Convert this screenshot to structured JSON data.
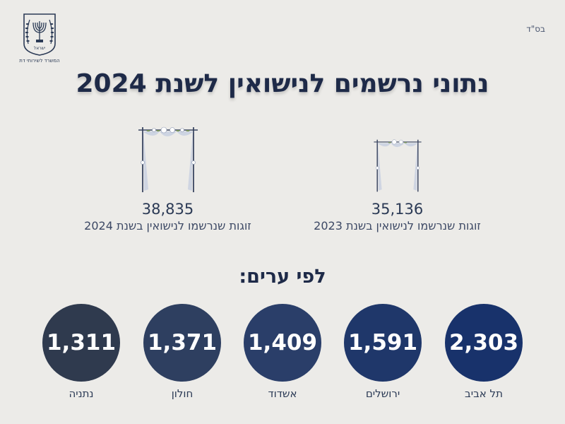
{
  "header": {
    "bsd": "בס\"ד",
    "ministry": "המשרד לשירותי דת",
    "emblem_text": "ישראל"
  },
  "title": "נתוני נרשמים לנישואין לשנת 2024",
  "stats": [
    {
      "number": "38,835",
      "caption": "זוגות שנרשמו לנישואין בשנת 2024"
    },
    {
      "number": "35,136",
      "caption": "זוגות שנרשמו לנישואין בשנת 2023"
    }
  ],
  "by_city_title": "לפי ערים:",
  "cities": [
    {
      "name": "תל אביב",
      "count": "2,303",
      "color": "#18326b"
    },
    {
      "name": "ירושלים",
      "count": "1,591",
      "color": "#1f376a"
    },
    {
      "name": "אשדוד",
      "count": "1,409",
      "color": "#2a3e69"
    },
    {
      "name": "חולון",
      "count": "1,371",
      "color": "#2e3f60"
    },
    {
      "name": "נתניה",
      "count": "1,311",
      "color": "#2f3a4e"
    }
  ],
  "colors": {
    "background": "#ecebe8",
    "title": "#1e2a48"
  }
}
